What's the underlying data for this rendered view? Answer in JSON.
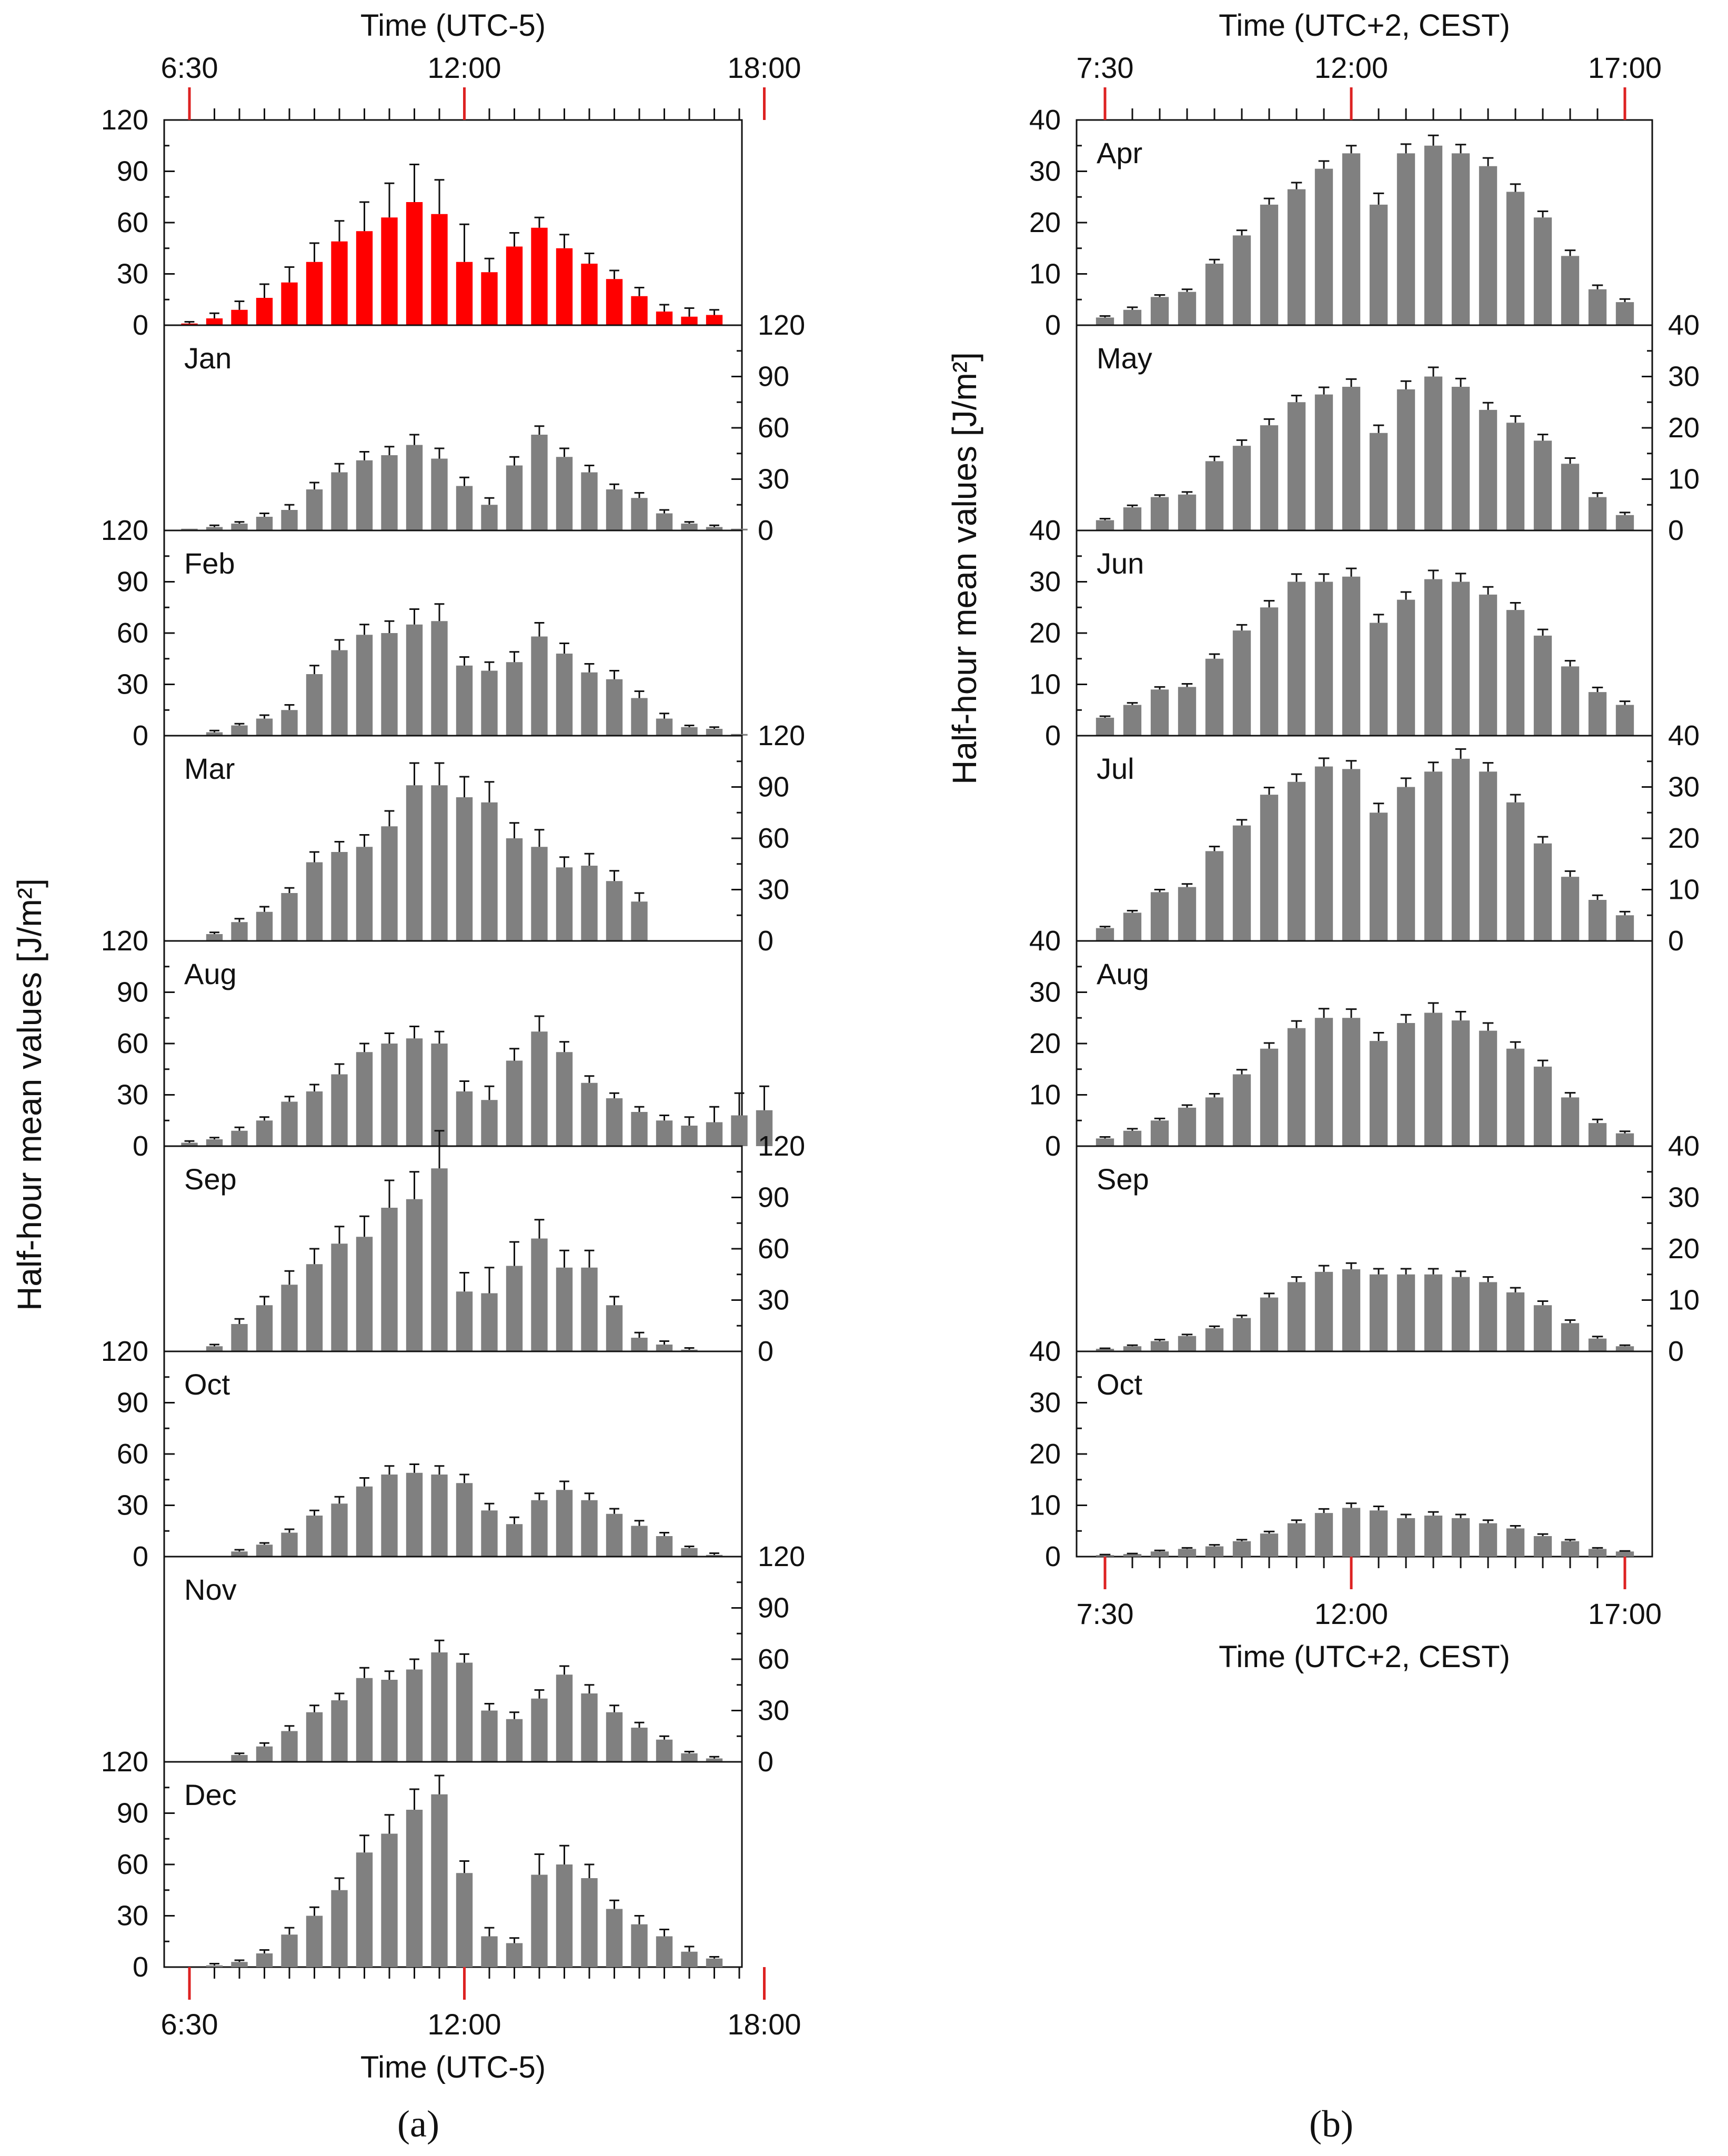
{
  "figure": {
    "left_label": "(a)",
    "right_label": "(b)",
    "left_ylabel": "Half-hour mean values [J/m²]",
    "right_ylabel": "Half-hour mean values [J/m²]"
  },
  "colors": {
    "bar": "#808080",
    "highlight_bar": "#ff0000",
    "red_tick": "#dd2222",
    "axis": "#111111"
  },
  "chart_data": [
    {
      "id": "a",
      "type": "bar",
      "title": "",
      "xlabel_top": "Time (UTC-5)",
      "xlabel_bottom": "Time (UTC-5)",
      "ylabel": "Half-hour mean values [J/m²]",
      "ylim": [
        0,
        120
      ],
      "yticks": [
        0,
        30,
        60,
        90,
        120
      ],
      "x_time_start": "6:30",
      "x_time_end": "18:00",
      "x_red_labels": [
        "6:30",
        "12:00",
        "18:00"
      ],
      "red_tick_positions": [
        0,
        11,
        23
      ],
      "panels": [
        {
          "name": "",
          "highlight": true,
          "axis_side": "left",
          "values": [
            1,
            4,
            9,
            16,
            25,
            37,
            49,
            55,
            63,
            72,
            65,
            37,
            31,
            46,
            57,
            45,
            36,
            27,
            17,
            8,
            5,
            6,
            0,
            0
          ],
          "errors": [
            1,
            3,
            5,
            8,
            9,
            11,
            12,
            17,
            20,
            22,
            20,
            22,
            8,
            8,
            6,
            8,
            6,
            5,
            5,
            4,
            5,
            3,
            0,
            0
          ]
        },
        {
          "name": "Jan",
          "highlight": false,
          "axis_side": "right",
          "values": [
            1,
            2,
            4,
            8,
            12,
            24,
            34,
            41,
            44,
            50,
            42,
            26,
            15,
            38,
            56,
            43,
            34,
            24,
            19,
            10,
            4,
            2,
            1,
            0
          ],
          "errors": [
            0,
            1,
            1,
            2,
            3,
            4,
            5,
            5,
            5,
            6,
            6,
            5,
            4,
            5,
            5,
            5,
            4,
            3,
            3,
            2,
            1,
            1,
            0,
            0
          ]
        },
        {
          "name": "Feb",
          "highlight": false,
          "axis_side": "left",
          "values": [
            0,
            2,
            6,
            10,
            15,
            36,
            50,
            59,
            60,
            65,
            67,
            41,
            38,
            43,
            58,
            48,
            37,
            33,
            22,
            10,
            5,
            4,
            1,
            0
          ],
          "errors": [
            0,
            1,
            1,
            2,
            3,
            5,
            6,
            6,
            7,
            9,
            10,
            5,
            5,
            6,
            8,
            6,
            5,
            5,
            4,
            3,
            1,
            1,
            0,
            0
          ]
        },
        {
          "name": "Mar",
          "highlight": false,
          "axis_side": "right",
          "values": [
            0,
            4,
            11,
            17,
            28,
            46,
            52,
            55,
            67,
            91,
            91,
            84,
            81,
            60,
            55,
            43,
            44,
            35,
            23,
            0,
            0,
            0,
            0,
            0
          ],
          "errors": [
            0,
            1,
            2,
            3,
            3,
            6,
            6,
            7,
            9,
            13,
            13,
            12,
            12,
            9,
            10,
            6,
            7,
            6,
            5,
            0,
            0,
            0,
            0,
            0
          ]
        },
        {
          "name": "Aug",
          "highlight": false,
          "axis_side": "left",
          "values": [
            2,
            4,
            9,
            15,
            26,
            32,
            42,
            55,
            60,
            63,
            60,
            32,
            27,
            50,
            67,
            55,
            37,
            28,
            20,
            15,
            12,
            14,
            18,
            21
          ],
          "errors": [
            1,
            1,
            2,
            2,
            3,
            4,
            6,
            5,
            6,
            7,
            7,
            6,
            8,
            7,
            9,
            6,
            4,
            3,
            3,
            3,
            5,
            9,
            13,
            14
          ]
        },
        {
          "name": "Sep",
          "highlight": false,
          "axis_side": "right",
          "values": [
            0,
            3,
            16,
            27,
            39,
            51,
            63,
            67,
            84,
            89,
            107,
            35,
            34,
            50,
            66,
            49,
            49,
            27,
            8,
            4,
            1,
            0,
            0,
            0
          ],
          "errors": [
            0,
            1,
            3,
            5,
            8,
            9,
            10,
            12,
            16,
            16,
            22,
            11,
            15,
            14,
            11,
            10,
            10,
            5,
            3,
            2,
            1,
            0,
            0,
            0
          ]
        },
        {
          "name": "Oct",
          "highlight": false,
          "axis_side": "left",
          "values": [
            0,
            0,
            3,
            7,
            14,
            24,
            31,
            41,
            48,
            49,
            48,
            43,
            27,
            19,
            33,
            39,
            33,
            25,
            18,
            12,
            5,
            1,
            0,
            0
          ],
          "errors": [
            0,
            0,
            1,
            1,
            2,
            3,
            4,
            5,
            5,
            5,
            5,
            5,
            4,
            4,
            4,
            5,
            4,
            3,
            3,
            2,
            1,
            1,
            0,
            0
          ]
        },
        {
          "name": "Nov",
          "highlight": false,
          "axis_side": "right",
          "values": [
            0,
            0,
            4,
            9,
            18,
            29,
            36,
            49,
            48,
            54,
            64,
            58,
            30,
            25,
            37,
            51,
            40,
            29,
            20,
            13,
            5,
            2,
            0,
            0
          ],
          "errors": [
            0,
            0,
            1,
            2,
            3,
            4,
            4,
            6,
            5,
            6,
            7,
            5,
            4,
            4,
            5,
            5,
            5,
            4,
            3,
            2,
            1,
            1,
            0,
            0
          ]
        },
        {
          "name": "Dec",
          "highlight": false,
          "axis_side": "left",
          "values": [
            0,
            1,
            3,
            8,
            19,
            30,
            45,
            67,
            78,
            92,
            101,
            55,
            18,
            14,
            54,
            60,
            52,
            34,
            25,
            18,
            9,
            5,
            0,
            0
          ],
          "errors": [
            0,
            1,
            1,
            2,
            4,
            5,
            7,
            10,
            11,
            12,
            11,
            7,
            5,
            3,
            12,
            11,
            8,
            5,
            5,
            4,
            3,
            1,
            0,
            0
          ]
        }
      ]
    },
    {
      "id": "b",
      "type": "bar",
      "title": "",
      "xlabel_top": "Time (UTC+2, CEST)",
      "xlabel_bottom": "Time (UTC+2, CEST)",
      "ylabel": "Half-hour mean values [J/m²]",
      "ylim": [
        0,
        40
      ],
      "yticks": [
        0,
        10,
        20,
        30,
        40
      ],
      "x_time_start": "7:30",
      "x_time_end": "17:00",
      "x_red_labels": [
        "7:30",
        "12:00",
        "17:00"
      ],
      "red_tick_positions": [
        0,
        9,
        19
      ],
      "panels": [
        {
          "name": "Apr",
          "highlight": false,
          "axis_side": "left",
          "values": [
            1.5,
            3,
            5.5,
            6.5,
            12,
            17.5,
            23.5,
            26.5,
            30.5,
            33.5,
            23.5,
            33.5,
            35,
            33.5,
            31,
            26,
            21,
            13.5,
            7,
            4.5
          ],
          "errors": [
            0.3,
            0.5,
            0.4,
            0.5,
            0.8,
            1,
            1.2,
            1.3,
            1.5,
            1.5,
            2.2,
            1.8,
            2,
            1.7,
            1.6,
            1.5,
            1.2,
            1.1,
            0.8,
            0.6
          ]
        },
        {
          "name": "May",
          "highlight": false,
          "axis_side": "right",
          "values": [
            2,
            4.5,
            6.5,
            7,
            13.5,
            16.5,
            20.5,
            25,
            26.5,
            28,
            19,
            27.5,
            30,
            28,
            23.5,
            21,
            17.5,
            13,
            6.5,
            3
          ],
          "errors": [
            0.3,
            0.4,
            0.4,
            0.5,
            0.9,
            1.1,
            1.2,
            1.3,
            1.4,
            1.5,
            1.5,
            1.6,
            1.8,
            1.6,
            1.4,
            1.3,
            1.2,
            1.1,
            0.8,
            0.5
          ]
        },
        {
          "name": "Jun",
          "highlight": false,
          "axis_side": "left",
          "values": [
            3.5,
            6,
            9,
            9.5,
            15,
            20.5,
            25,
            30,
            30,
            31,
            22,
            26.5,
            30.5,
            30,
            27.5,
            24.5,
            19.5,
            13.5,
            8.5,
            6
          ],
          "errors": [
            0.3,
            0.4,
            0.5,
            0.6,
            0.9,
            1.1,
            1.3,
            1.5,
            1.5,
            1.6,
            1.6,
            1.5,
            1.7,
            1.6,
            1.5,
            1.4,
            1.2,
            1.1,
            0.9,
            0.7
          ]
        },
        {
          "name": "Jul",
          "highlight": false,
          "axis_side": "right",
          "values": [
            2.5,
            5.5,
            9.5,
            10.5,
            17.5,
            22.5,
            28.5,
            31,
            34,
            33.5,
            25,
            30,
            33,
            35.5,
            33,
            27,
            19,
            12.5,
            8,
            5
          ],
          "errors": [
            0.3,
            0.4,
            0.5,
            0.6,
            0.9,
            1.1,
            1.4,
            1.5,
            1.6,
            1.6,
            1.8,
            1.7,
            1.8,
            1.9,
            1.7,
            1.5,
            1.3,
            1.1,
            0.9,
            0.7
          ]
        },
        {
          "name": "Aug",
          "highlight": false,
          "axis_side": "left",
          "values": [
            1.5,
            3,
            5,
            7.5,
            9.5,
            14,
            19,
            23,
            25,
            25,
            20.5,
            24,
            26,
            24.5,
            22.5,
            19,
            15.5,
            9.5,
            4.5,
            2.5
          ],
          "errors": [
            0.3,
            0.4,
            0.4,
            0.5,
            0.7,
            0.9,
            1.1,
            1.4,
            1.8,
            1.7,
            1.6,
            1.6,
            1.9,
            1.7,
            1.5,
            1.3,
            1.2,
            0.9,
            0.7,
            0.4
          ]
        },
        {
          "name": "Sep",
          "highlight": false,
          "axis_side": "right",
          "values": [
            0.5,
            1,
            2,
            3,
            4.5,
            6.5,
            10.5,
            13.5,
            15.5,
            16,
            15,
            15,
            15,
            14.5,
            13.5,
            11.5,
            9,
            5.5,
            2.5,
            1
          ],
          "errors": [
            0.1,
            0.2,
            0.3,
            0.3,
            0.4,
            0.5,
            0.8,
            1,
            1.2,
            1.2,
            1.1,
            1.1,
            1.1,
            1.1,
            1,
            0.9,
            0.8,
            0.6,
            0.4,
            0.2
          ]
        },
        {
          "name": "Oct",
          "highlight": false,
          "axis_side": "left",
          "values": [
            0.3,
            0.5,
            1,
            1.5,
            2,
            3,
            4.5,
            6.5,
            8.5,
            9.5,
            9,
            7.5,
            8,
            7.5,
            6.5,
            5.5,
            4,
            3,
            1.5,
            1
          ],
          "errors": [
            0.1,
            0.1,
            0.2,
            0.2,
            0.3,
            0.3,
            0.4,
            0.6,
            0.8,
            0.9,
            0.8,
            0.7,
            0.7,
            0.7,
            0.6,
            0.5,
            0.4,
            0.3,
            0.2,
            0.1
          ]
        }
      ]
    }
  ]
}
